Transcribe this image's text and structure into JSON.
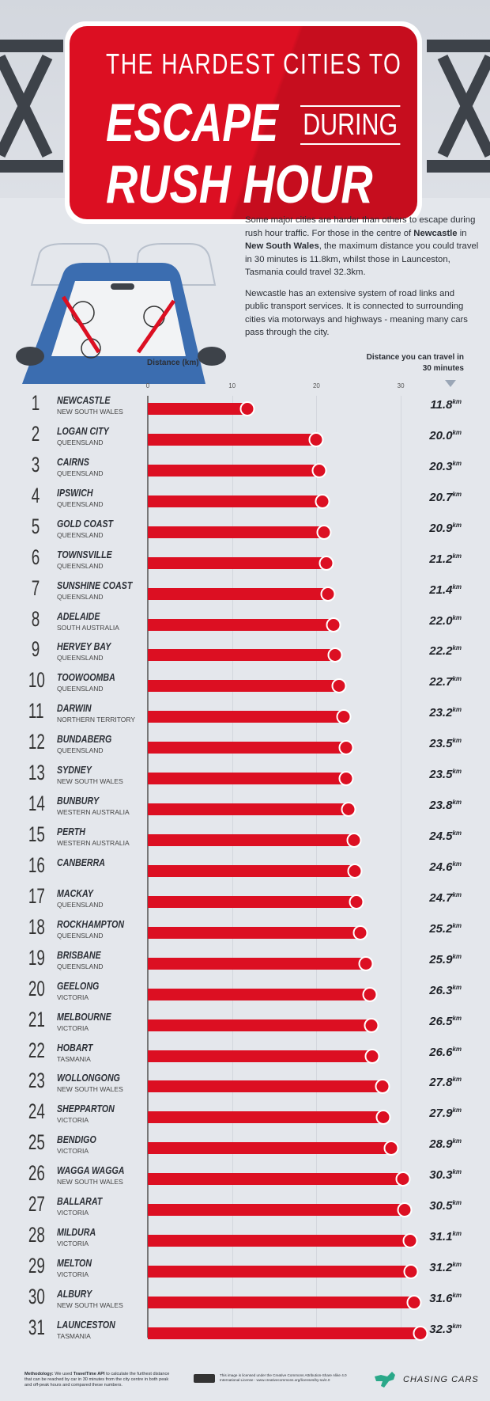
{
  "header": {
    "line1": "THE HARDEST CITIES TO",
    "line2": "ESCAPE",
    "line2b": "DURING",
    "line3": "RUSH HOUR"
  },
  "intro": {
    "p1_a": "Some major cities are harder than others to escape during rush hour traffic. For those in the centre of ",
    "p1_b": "Newcastle",
    "p1_c": " in ",
    "p1_d": "New South Wales",
    "p1_e": ", the maximum distance you could travel in 30 minutes is 11.8km, whilst those in Launceston, Tasmania could travel 32.3km.",
    "p2": "Newcastle has an extensive system of road links and public transport services. It is connected to surrounding cities via motorways and highways - meaning many cars pass through the city."
  },
  "chart_data": {
    "type": "bar",
    "orientation": "horizontal",
    "title": "The Hardest Cities to Escape During Rush Hour",
    "xlabel": "Distance (km)",
    "value_header": "Distance you can travel in 30 minutes",
    "unit": "km",
    "xlim": [
      0,
      33
    ],
    "xticks": [
      0,
      10,
      20,
      30
    ],
    "rows": [
      {
        "rank": "1",
        "city": "NEWCASTLE",
        "state": "NEW SOUTH WALES",
        "value": 11.8
      },
      {
        "rank": "2",
        "city": "LOGAN CITY",
        "state": "QUEENSLAND",
        "value": 20.0
      },
      {
        "rank": "3",
        "city": "CAIRNS",
        "state": "QUEENSLAND",
        "value": 20.3
      },
      {
        "rank": "4",
        "city": "IPSWICH",
        "state": "QUEENSLAND",
        "value": 20.7
      },
      {
        "rank": "5",
        "city": "GOLD COAST",
        "state": "QUEENSLAND",
        "value": 20.9
      },
      {
        "rank": "6",
        "city": "TOWNSVILLE",
        "state": "QUEENSLAND",
        "value": 21.2
      },
      {
        "rank": "7",
        "city": "SUNSHINE COAST",
        "state": "QUEENSLAND",
        "value": 21.4
      },
      {
        "rank": "8",
        "city": "ADELAIDE",
        "state": "SOUTH AUSTRALIA",
        "value": 22.0
      },
      {
        "rank": "9",
        "city": "HERVEY BAY",
        "state": "QUEENSLAND",
        "value": 22.2
      },
      {
        "rank": "10",
        "city": "TOOWOOMBA",
        "state": "QUEENSLAND",
        "value": 22.7
      },
      {
        "rank": "11",
        "city": "DARWIN",
        "state": "NORTHERN TERRITORY",
        "value": 23.2
      },
      {
        "rank": "12",
        "city": "BUNDABERG",
        "state": "QUEENSLAND",
        "value": 23.5
      },
      {
        "rank": "13",
        "city": "SYDNEY",
        "state": "NEW SOUTH WALES",
        "value": 23.5
      },
      {
        "rank": "14",
        "city": "BUNBURY",
        "state": "WESTERN AUSTRALIA",
        "value": 23.8
      },
      {
        "rank": "15",
        "city": "PERTH",
        "state": "WESTERN AUSTRALIA",
        "value": 24.5
      },
      {
        "rank": "16",
        "city": "CANBERRA",
        "state": "",
        "value": 24.6
      },
      {
        "rank": "17",
        "city": "MACKAY",
        "state": "QUEENSLAND",
        "value": 24.7
      },
      {
        "rank": "18",
        "city": "ROCKHAMPTON",
        "state": "QUEENSLAND",
        "value": 25.2
      },
      {
        "rank": "19",
        "city": "BRISBANE",
        "state": "QUEENSLAND",
        "value": 25.9
      },
      {
        "rank": "20",
        "city": "GEELONG",
        "state": "VICTORIA",
        "value": 26.3
      },
      {
        "rank": "21",
        "city": "MELBOURNE",
        "state": "VICTORIA",
        "value": 26.5
      },
      {
        "rank": "22",
        "city": "HOBART",
        "state": "TASMANIA",
        "value": 26.6
      },
      {
        "rank": "23",
        "city": "WOLLONGONG",
        "state": "NEW SOUTH WALES",
        "value": 27.8
      },
      {
        "rank": "24",
        "city": "SHEPPARTON",
        "state": "VICTORIA",
        "value": 27.9
      },
      {
        "rank": "25",
        "city": "BENDIGO",
        "state": "VICTORIA",
        "value": 28.9
      },
      {
        "rank": "26",
        "city": "WAGGA WAGGA",
        "state": "NEW SOUTH WALES",
        "value": 30.3
      },
      {
        "rank": "27",
        "city": "BALLARAT",
        "state": "VICTORIA",
        "value": 30.5
      },
      {
        "rank": "28",
        "city": "MILDURA",
        "state": "VICTORIA",
        "value": 31.1
      },
      {
        "rank": "29",
        "city": "MELTON",
        "state": "VICTORIA",
        "value": 31.2
      },
      {
        "rank": "30",
        "city": "ALBURY",
        "state": "NEW SOUTH WALES",
        "value": 31.6
      },
      {
        "rank": "31",
        "city": "LAUNCESTON",
        "state": "TASMANIA",
        "value": 32.3
      }
    ]
  },
  "colors": {
    "bar": "#dc0f22",
    "sign": "#dc0f22",
    "car": "#3b6db0",
    "brand": "#2aa889"
  },
  "footer": {
    "method_label": "Methodology:",
    "method_a": " We used ",
    "method_api": "TravelTime API",
    "method_b": " to calculate the furthest distance that can be reached by car in 30 minutes from the city centre in both peak and off-peak hours and compared these numbers.",
    "license": "This image is licensed under the Creative Commons Attribution-Share Alike 4.0 International License - www.creativecommons.org/licenses/by-sa/4.0",
    "brand": "CHASING CARS"
  }
}
